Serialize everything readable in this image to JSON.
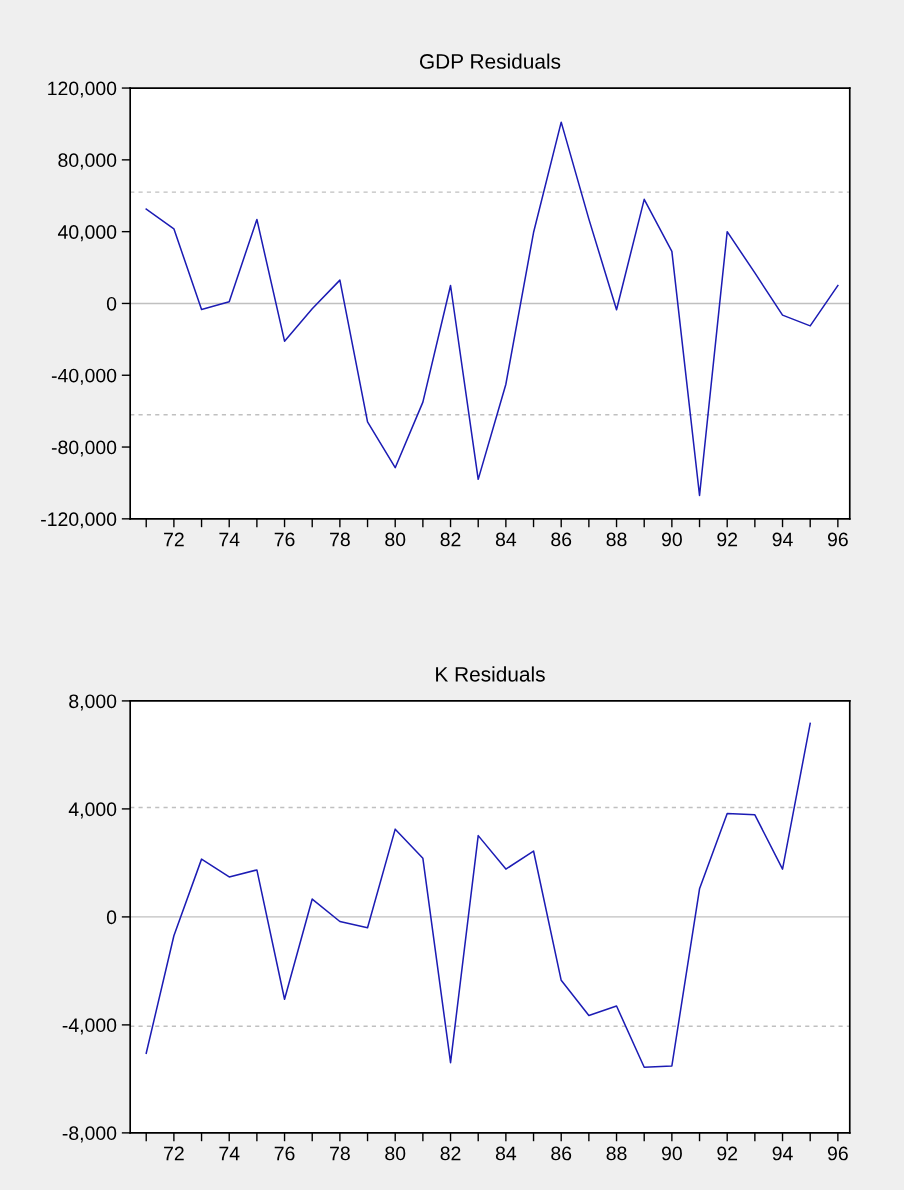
{
  "chart_data": [
    {
      "type": "line",
      "title": "GDP Residuals",
      "x": [
        71,
        72,
        73,
        74,
        75,
        76,
        77,
        78,
        79,
        80,
        81,
        82,
        83,
        84,
        85,
        86,
        87,
        88,
        89,
        90,
        91,
        92,
        93,
        94,
        95,
        96
      ],
      "series": [
        {
          "color": "#1c1cb4",
          "values": [
            52600,
            41600,
            -3400,
            1000,
            46800,
            -21000,
            -3000,
            13000,
            -66000,
            -91500,
            -55000,
            10000,
            -98000,
            -45000,
            39500,
            101000,
            47000,
            -3500,
            58000,
            29000,
            -107000,
            40000,
            17000,
            -6500,
            -12500,
            10000
          ]
        }
      ],
      "xlim": [
        70.42,
        96.43
      ],
      "xticks": [
        {
          "value": 71,
          "label": null
        },
        72,
        {
          "value": 73,
          "label": null
        },
        74,
        {
          "value": 75,
          "label": null
        },
        76,
        {
          "value": 77,
          "label": null
        },
        78,
        {
          "value": 79,
          "label": null
        },
        80,
        {
          "value": 81,
          "label": null
        },
        82,
        {
          "value": 83,
          "label": null
        },
        84,
        {
          "value": 85,
          "label": null
        },
        86,
        {
          "value": 87,
          "label": null
        },
        88,
        {
          "value": 89,
          "label": null
        },
        90,
        {
          "value": 91,
          "label": null
        },
        92,
        {
          "value": 93,
          "label": null
        },
        94,
        {
          "value": 95,
          "label": null
        },
        96
      ],
      "ylim": [
        -120000,
        120000
      ],
      "yticks": [
        {
          "value": -120000,
          "label": "-120,000"
        },
        {
          "value": -80000,
          "label": "-80,000"
        },
        {
          "value": -40000,
          "label": "-40,000"
        },
        0,
        {
          "value": 40000,
          "label": "40,000"
        },
        {
          "value": 80000,
          "label": "80,000"
        },
        {
          "value": 120000,
          "label": "120,000"
        }
      ],
      "ref_lines": [
        {
          "axis": "y",
          "value": 0,
          "color": "#c0c0c0",
          "line_style": "solid"
        },
        {
          "axis": "y",
          "value": 62000,
          "color": "#c0c0c0",
          "line_style": "dashed"
        },
        {
          "axis": "y",
          "value": -62000,
          "color": "#c0c0c0",
          "line_style": "dashed"
        }
      ],
      "grid": false,
      "legend": false
    },
    {
      "type": "line",
      "title": "K Residuals",
      "x": [
        71,
        72,
        73,
        74,
        75,
        76,
        77,
        78,
        79,
        80,
        81,
        82,
        83,
        84,
        85,
        86,
        87,
        88,
        89,
        90,
        91,
        92,
        93,
        94,
        95
      ],
      "series": [
        {
          "color": "#1c1cb4",
          "values": [
            -5050,
            -700,
            2140,
            1480,
            1740,
            -3050,
            660,
            -170,
            -400,
            3250,
            2170,
            -5400,
            3010,
            1770,
            2440,
            -2350,
            -3650,
            -3300,
            -5570,
            -5520,
            1040,
            3830,
            3780,
            1770,
            7170
          ]
        }
      ],
      "xlim": [
        70.42,
        96.43
      ],
      "xticks": [
        {
          "value": 71,
          "label": null
        },
        72,
        {
          "value": 73,
          "label": null
        },
        74,
        {
          "value": 75,
          "label": null
        },
        76,
        {
          "value": 77,
          "label": null
        },
        78,
        {
          "value": 79,
          "label": null
        },
        80,
        {
          "value": 81,
          "label": null
        },
        82,
        {
          "value": 83,
          "label": null
        },
        84,
        {
          "value": 85,
          "label": null
        },
        86,
        {
          "value": 87,
          "label": null
        },
        88,
        {
          "value": 89,
          "label": null
        },
        90,
        {
          "value": 91,
          "label": null
        },
        92,
        {
          "value": 93,
          "label": null
        },
        94,
        {
          "value": 95,
          "label": null
        },
        96
      ],
      "ylim": [
        -8000,
        8000
      ],
      "yticks": [
        {
          "value": -8000,
          "label": "-8,000"
        },
        {
          "value": -4000,
          "label": "-4,000"
        },
        0,
        {
          "value": 4000,
          "label": "4,000"
        },
        {
          "value": 8000,
          "label": "8,000"
        }
      ],
      "ref_lines": [
        {
          "axis": "y",
          "value": 0,
          "color": "#c0c0c0",
          "line_style": "solid"
        },
        {
          "axis": "y",
          "value": 4050,
          "color": "#c0c0c0",
          "line_style": "dashed"
        },
        {
          "axis": "y",
          "value": -4050,
          "color": "#c0c0c0",
          "line_style": "dashed"
        }
      ],
      "grid": false,
      "legend": false
    }
  ]
}
